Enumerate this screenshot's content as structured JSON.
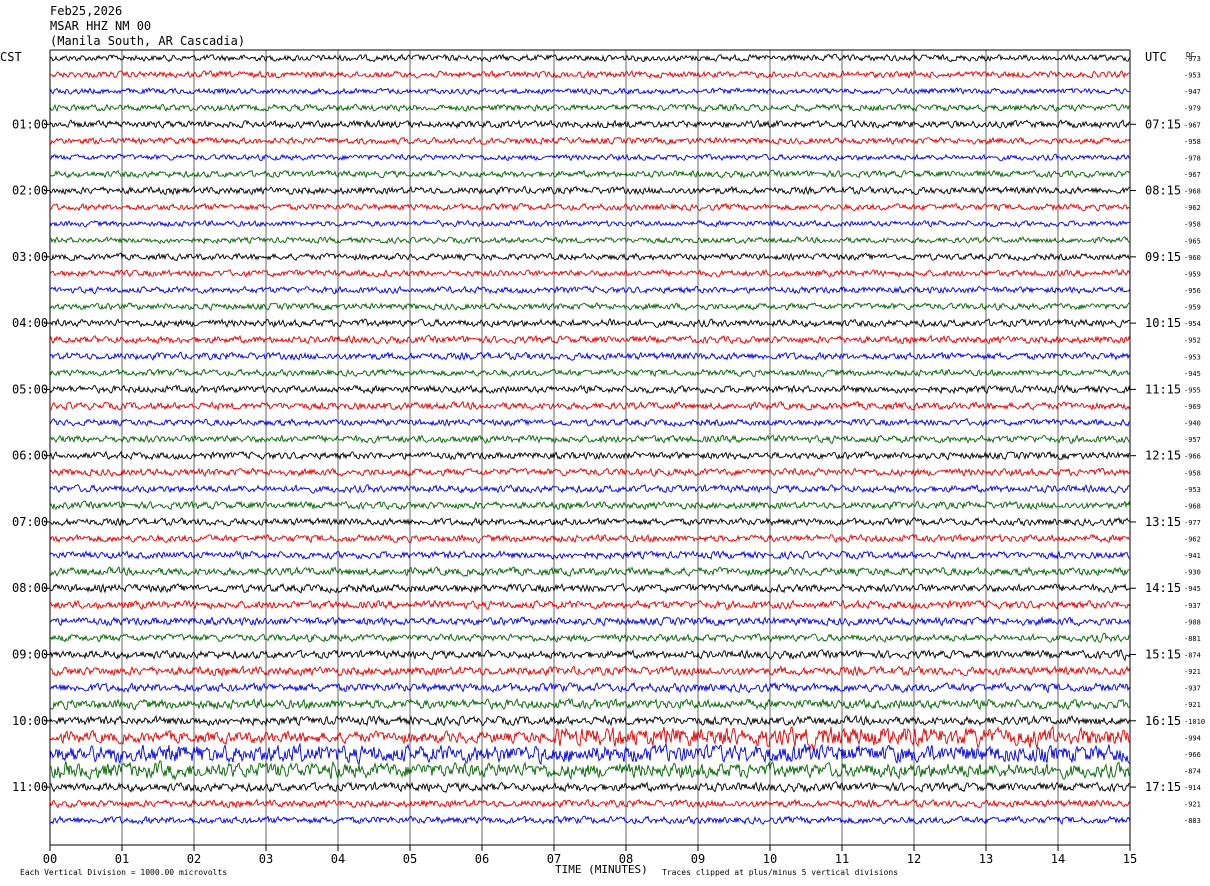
{
  "header": {
    "date": "Feb25,2026",
    "station": "MSAR HHZ NM 00",
    "location": "(Manila South, AR Cascadia)"
  },
  "left_zone": "CST",
  "right_zone": "UTC",
  "dc_label": "DC",
  "footer": {
    "scale": "Each Vertical Division = 1000.00 microvolts",
    "xlabel": "TIME (MINUTES)",
    "clip": "Traces clipped at plus/minus 5 vertical divisions"
  },
  "colors": {
    "trace_cycle": [
      "#000000",
      "#e00000",
      "#0000e0",
      "#006400"
    ],
    "grid": "#000000"
  },
  "chart_data": {
    "type": "line",
    "description_kind": "helicorder",
    "xlim": [
      0,
      15
    ],
    "x_ticks": [
      "00",
      "01",
      "02",
      "03",
      "04",
      "05",
      "06",
      "07",
      "08",
      "09",
      "10",
      "11",
      "12",
      "13",
      "14",
      "15"
    ],
    "left_time_labels": [
      "01:00",
      "02:00",
      "03:00",
      "04:00",
      "05:00",
      "06:00",
      "07:00",
      "08:00",
      "09:00",
      "10:00",
      "11:00"
    ],
    "right_time_labels": [
      "07:15",
      "08:15",
      "09:15",
      "10:15",
      "11:15",
      "12:15",
      "13:15",
      "14:15",
      "15:15",
      "16:15",
      "17:15"
    ],
    "dc_offsets": [
      "-973",
      "-953",
      "-947",
      "-979",
      "-967",
      "-958",
      "-978",
      "-967",
      "-968",
      "-962",
      "-958",
      "-965",
      "-960",
      "-959",
      "-956",
      "-959",
      "-954",
      "-952",
      "-953",
      "-945",
      "-955",
      "-969",
      "-940",
      "-957",
      "-966",
      "-958",
      "-953",
      "-968",
      "-977",
      "-962",
      "-941",
      "-930",
      "-945",
      "-937",
      "-908",
      "-881",
      "-874",
      "-921",
      "-937",
      "-921",
      "-1010",
      "-994",
      "-966",
      "-874",
      "-914",
      "-921",
      "-883"
    ],
    "trace_amplitude": [
      4.5,
      4.5,
      4,
      4.5,
      5,
      4.5,
      4,
      4.5,
      5,
      4.5,
      4,
      4,
      4.5,
      4.5,
      4.5,
      4.5,
      5,
      5,
      5,
      4.5,
      5,
      5,
      4.5,
      5,
      5,
      5,
      5,
      5,
      5,
      5,
      5,
      5.5,
      5.5,
      5.5,
      5.5,
      5,
      5.5,
      6,
      6,
      6.5,
      6,
      8,
      12,
      10,
      6,
      5,
      5
    ],
    "events": [
      {
        "trace": 16,
        "minute": 7.8,
        "amplitude": 9
      },
      {
        "trace": 36,
        "minute": 5.3,
        "amplitude": 6
      },
      {
        "trace": 36,
        "minute": 9.5,
        "amplitude": 6
      },
      {
        "trace": 36,
        "minute": 13.1,
        "amplitude": 6
      },
      {
        "trace": 36,
        "minute": 14.9,
        "amplitude": 8
      },
      {
        "trace": 35,
        "minute": 14.6,
        "amplitude": 7
      },
      {
        "trace": 39,
        "minute": 10.4,
        "amplitude": 6
      },
      {
        "trace": 27,
        "minute": 12.3,
        "amplitude": 6
      },
      {
        "trace": 27,
        "minute": 13.6,
        "amplitude": 6
      }
    ],
    "bursts": [
      {
        "trace": 41,
        "start": 7,
        "end": 15,
        "amplitude": 16
      },
      {
        "trace": 42,
        "start": 0,
        "end": 4,
        "amplitude": 14
      },
      {
        "trace": 42,
        "start": 6,
        "end": 15,
        "amplitude": 13
      },
      {
        "trace": 43,
        "start": 0,
        "end": 4,
        "amplitude": 13
      }
    ]
  }
}
